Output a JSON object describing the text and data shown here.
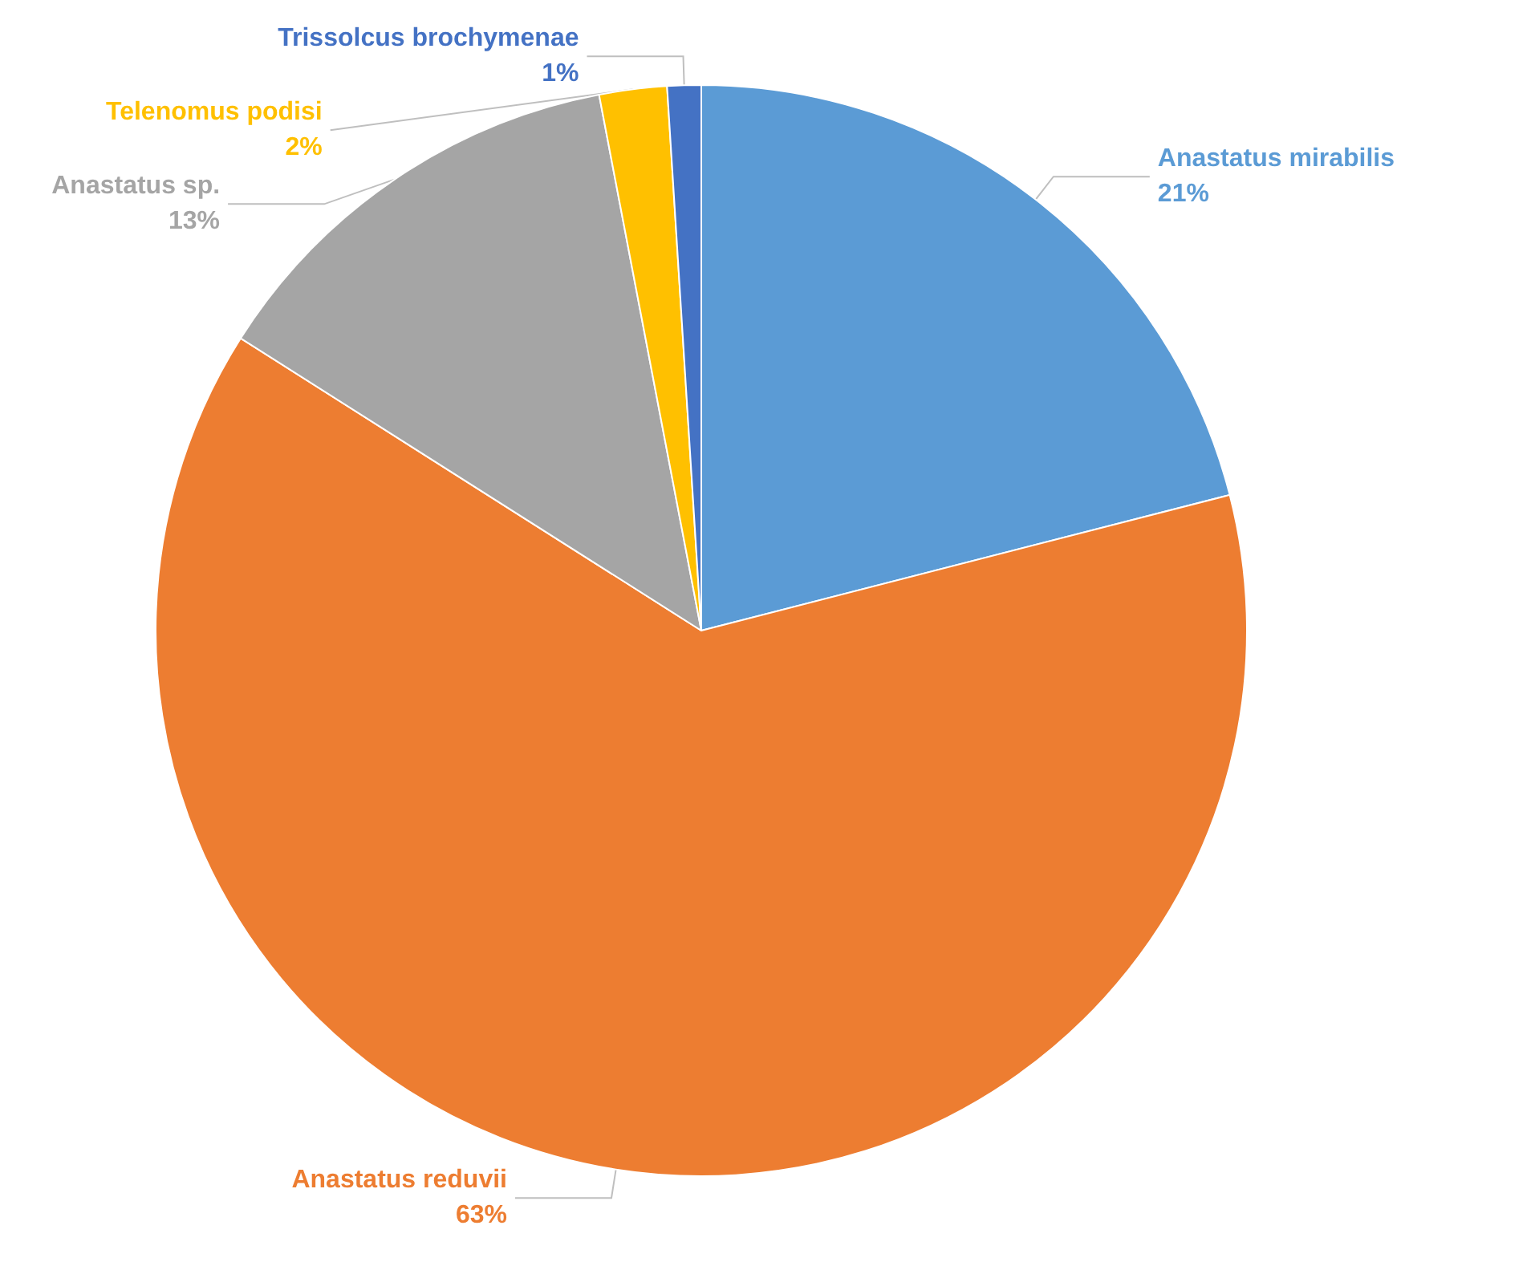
{
  "chart_data": {
    "type": "pie",
    "categories": [
      "Anastatus mirabilis",
      "Anastatus reduvii",
      "Anastatus sp.",
      "Telenomus podisi",
      "Trissolcus brochymenae"
    ],
    "values": [
      21,
      63,
      13,
      2,
      1
    ],
    "colors": [
      "#5b9bd5",
      "#ed7d31",
      "#a5a5a5",
      "#ffc000",
      "#4472c4"
    ],
    "value_labels": [
      "21%",
      "63%",
      "13%",
      "2%",
      "1%"
    ],
    "legend": false
  }
}
